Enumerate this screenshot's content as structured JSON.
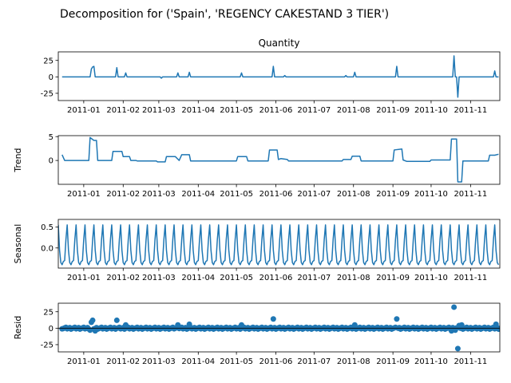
{
  "figure": {
    "suptitle": "Decomposition for ('Spain', 'REGENCY CAKESTAND 3 TIER')"
  },
  "colors": {
    "line": "#1f77b4",
    "axes": "#000000",
    "background": "#ffffff"
  },
  "chart_data": [
    {
      "type": "line",
      "title": "Quantity",
      "ylabel": "",
      "xlim": [
        "2010-12-12",
        "2011-11-24"
      ],
      "ylim": [
        -36,
        38
      ],
      "yticks": [
        -25,
        0,
        25
      ],
      "xticks": [
        "2011-01",
        "2011-02",
        "2011-03",
        "2011-04",
        "2011-05",
        "2011-06",
        "2011-07",
        "2011-08",
        "2011-09",
        "2011-10",
        "2011-11"
      ],
      "baseline": 0,
      "spikes": [
        {
          "date": "2011-01-07",
          "value": 12
        },
        {
          "date": "2011-01-08",
          "value": 15
        },
        {
          "date": "2011-01-09",
          "value": 16
        },
        {
          "date": "2011-01-27",
          "value": 14
        },
        {
          "date": "2011-02-03",
          "value": 6
        },
        {
          "date": "2011-03-03",
          "value": -2
        },
        {
          "date": "2011-03-16",
          "value": 6
        },
        {
          "date": "2011-03-25",
          "value": 7
        },
        {
          "date": "2011-05-05",
          "value": 6
        },
        {
          "date": "2011-05-30",
          "value": 16
        },
        {
          "date": "2011-06-08",
          "value": 2
        },
        {
          "date": "2011-07-26",
          "value": 2
        },
        {
          "date": "2011-08-02",
          "value": 7
        },
        {
          "date": "2011-09-04",
          "value": 16
        },
        {
          "date": "2011-10-19",
          "value": 32
        },
        {
          "date": "2011-10-22",
          "value": -31
        },
        {
          "date": "2011-11-20",
          "value": 9
        }
      ]
    },
    {
      "type": "line",
      "title": "",
      "ylabel": "Trend",
      "xlim": [
        "2010-12-12",
        "2011-11-24"
      ],
      "ylim": [
        -5,
        5.2
      ],
      "yticks": [
        0,
        5
      ],
      "xticks": [
        "2011-01",
        "2011-02",
        "2011-03",
        "2011-04",
        "2011-05",
        "2011-06",
        "2011-07",
        "2011-08",
        "2011-09",
        "2011-10",
        "2011-11"
      ],
      "points": [
        [
          "2010-12-15",
          1.2
        ],
        [
          "2010-12-17",
          0
        ],
        [
          "2011-01-05",
          0
        ],
        [
          "2011-01-06",
          4.8
        ],
        [
          "2011-01-09",
          4.2
        ],
        [
          "2011-01-11",
          4.2
        ],
        [
          "2011-01-12",
          0
        ],
        [
          "2011-01-23",
          0
        ],
        [
          "2011-01-24",
          1.9
        ],
        [
          "2011-01-31",
          1.9
        ],
        [
          "2011-02-01",
          0.8
        ],
        [
          "2011-02-06",
          0.8
        ],
        [
          "2011-02-07",
          0
        ],
        [
          "2011-02-11",
          0
        ],
        [
          "2011-02-12",
          -0.1
        ],
        [
          "2011-02-27",
          -0.1
        ],
        [
          "2011-02-28",
          -0.3
        ],
        [
          "2011-03-06",
          -0.3
        ],
        [
          "2011-03-07",
          0.8
        ],
        [
          "2011-03-14",
          0.8
        ],
        [
          "2011-03-17",
          0
        ],
        [
          "2011-03-19",
          1.2
        ],
        [
          "2011-03-25",
          1.2
        ],
        [
          "2011-03-26",
          -0.1
        ],
        [
          "2011-05-01",
          -0.1
        ],
        [
          "2011-05-02",
          0.8
        ],
        [
          "2011-05-09",
          0.8
        ],
        [
          "2011-05-10",
          -0.1
        ],
        [
          "2011-05-26",
          -0.1
        ],
        [
          "2011-05-27",
          2.2
        ],
        [
          "2011-06-02",
          2.2
        ],
        [
          "2011-06-03",
          0.2
        ],
        [
          "2011-06-05",
          0.4
        ],
        [
          "2011-06-10",
          0.2
        ],
        [
          "2011-06-11",
          -0.1
        ],
        [
          "2011-07-23",
          -0.1
        ],
        [
          "2011-07-24",
          0.2
        ],
        [
          "2011-07-30",
          0.2
        ],
        [
          "2011-07-31",
          0.9
        ],
        [
          "2011-08-06",
          0.9
        ],
        [
          "2011-08-07",
          -0.1
        ],
        [
          "2011-09-01",
          -0.1
        ],
        [
          "2011-09-02",
          2.2
        ],
        [
          "2011-09-08",
          2.4
        ],
        [
          "2011-09-09",
          0.1
        ],
        [
          "2011-09-12",
          -0.2
        ],
        [
          "2011-09-30",
          -0.2
        ],
        [
          "2011-10-01",
          0.1
        ],
        [
          "2011-10-16",
          0.1
        ],
        [
          "2011-10-17",
          4.5
        ],
        [
          "2011-10-21",
          4.5
        ],
        [
          "2011-10-22",
          -4.5
        ],
        [
          "2011-10-25",
          -4.5
        ],
        [
          "2011-10-26",
          -0.1
        ],
        [
          "2011-11-15",
          -0.1
        ],
        [
          "2011-11-16",
          1.1
        ],
        [
          "2011-11-20",
          1.1
        ],
        [
          "2011-11-23",
          1.3
        ]
      ]
    },
    {
      "type": "line",
      "title": "",
      "ylabel": "Seasonal",
      "xlim": [
        "2010-12-12",
        "2011-11-24"
      ],
      "ylim": [
        -0.48,
        0.68
      ],
      "yticks": [
        0.0,
        0.5
      ],
      "yticklabels": [
        "0.0",
        "0.5"
      ],
      "xticks": [
        "2011-01",
        "2011-02",
        "2011-03",
        "2011-04",
        "2011-05",
        "2011-06",
        "2011-07",
        "2011-08",
        "2011-09",
        "2011-10",
        "2011-11"
      ],
      "period_days": 7,
      "start": "2010-12-12",
      "end": "2011-11-23",
      "pattern": [
        0.55,
        -0.05,
        -0.35,
        -0.4,
        -0.32,
        -0.3,
        0.2
      ]
    },
    {
      "type": "scatter",
      "title": "",
      "ylabel": "Resid",
      "xlim": [
        "2010-12-12",
        "2011-11-24"
      ],
      "ylim": [
        -36,
        38
      ],
      "yticks": [
        -25,
        0,
        25
      ],
      "xticks": [
        "2011-01",
        "2011-02",
        "2011-03",
        "2011-04",
        "2011-05",
        "2011-06",
        "2011-07",
        "2011-08",
        "2011-09",
        "2011-10",
        "2011-11"
      ],
      "baseline": 0,
      "start": "2010-12-15",
      "end": "2011-11-23",
      "outliers": [
        {
          "date": "2010-12-15",
          "value": -1
        },
        {
          "date": "2011-01-06",
          "value": -3
        },
        {
          "date": "2011-01-07",
          "value": 9
        },
        {
          "date": "2011-01-08",
          "value": 12
        },
        {
          "date": "2011-01-10",
          "value": -4
        },
        {
          "date": "2011-01-27",
          "value": 12
        },
        {
          "date": "2011-02-03",
          "value": 5
        },
        {
          "date": "2011-03-16",
          "value": 5
        },
        {
          "date": "2011-03-25",
          "value": 6
        },
        {
          "date": "2011-05-05",
          "value": 5
        },
        {
          "date": "2011-05-30",
          "value": 14
        },
        {
          "date": "2011-08-02",
          "value": 5
        },
        {
          "date": "2011-09-04",
          "value": 14
        },
        {
          "date": "2011-10-17",
          "value": -4
        },
        {
          "date": "2011-10-19",
          "value": 32
        },
        {
          "date": "2011-10-20",
          "value": -3
        },
        {
          "date": "2011-10-22",
          "value": -31
        },
        {
          "date": "2011-10-23",
          "value": 4
        },
        {
          "date": "2011-10-25",
          "value": 5
        },
        {
          "date": "2011-11-21",
          "value": 6
        }
      ]
    }
  ]
}
